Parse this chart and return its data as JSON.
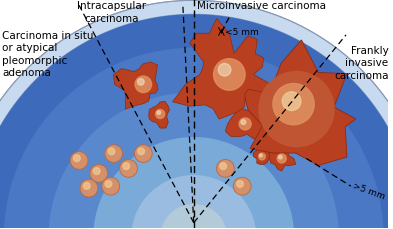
{
  "bg_color": "#ffffff",
  "capsule_color": "#c8daf0",
  "inner_blue_dark": "#3a6ab8",
  "inner_blue_light": "#7aaad8",
  "inner_blue_mid": "#5588c8",
  "carcinoma_dark": "#8b2a10",
  "carcinoma_mid": "#b84020",
  "carcinoma_light": "#c86030",
  "carcinoma_glow": "#e09060",
  "small_circle_fill": "#d4906a",
  "small_circle_edge": "#b86840",
  "small_circle_highlight": "#f0c890",
  "label_intracapsular": "Intracapsular\ncarcinoma",
  "label_microinvasive": "Microinvasive carcinoma",
  "label_frankly": "Frankly\ninvasive\ncarcinoma",
  "label_cis": "Carcinoma in situ\nor atypical\npleomorphic\nadenoma",
  "label_lt5mm": "<5 mm",
  "label_gt5mm": ">5 mm",
  "figsize": [
    3.93,
    2.3
  ],
  "dpi": 100
}
